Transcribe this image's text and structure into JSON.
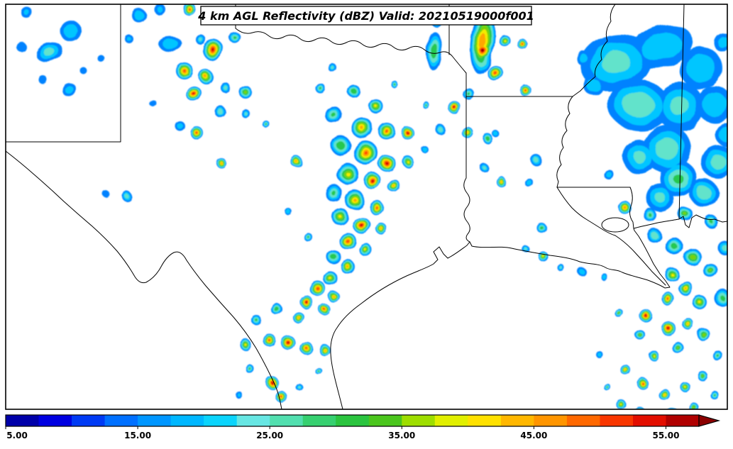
{
  "chart_data": {
    "type": "heatmap",
    "title": "4 km AGL Reflectivity (dBZ) Valid: 20210519000f001",
    "units": "dBZ",
    "layout": {
      "background": "#ffffff",
      "frame_color": "#000000",
      "boundary_color": "#000000",
      "legend_position": "bottom"
    },
    "colorbar": {
      "tick_labels": [
        "5.00",
        "15.00",
        "25.00",
        "35.00",
        "45.00",
        "55.00"
      ],
      "tick_values": [
        5,
        15,
        25,
        35,
        45,
        55
      ],
      "range": [
        5,
        57.5
      ],
      "arrow_color": "#8B0000",
      "levels": [
        [
          5,
          "#00008B"
        ],
        [
          9,
          "#0000E6"
        ],
        [
          13,
          "#0064FF"
        ],
        [
          17,
          "#00A0FF"
        ],
        [
          21,
          "#00D2FF"
        ],
        [
          24,
          "#6EE7E1"
        ],
        [
          27,
          "#4ADCA0"
        ],
        [
          30,
          "#28C850"
        ],
        [
          33,
          "#30BE28"
        ],
        [
          36,
          "#96DC00"
        ],
        [
          39,
          "#E6F000"
        ],
        [
          41,
          "#FFE600"
        ],
        [
          44,
          "#FFB400"
        ],
        [
          47,
          "#FF8C00"
        ],
        [
          50,
          "#FF5000"
        ],
        [
          53,
          "#F01400"
        ],
        [
          55.5,
          "#C80000"
        ],
        [
          57.5,
          "#8B0000"
        ]
      ]
    },
    "echo_levels": [
      15,
      20,
      25,
      30,
      35,
      40,
      45,
      50,
      55,
      57
    ],
    "echoes": [
      [
        38,
        18,
        8,
        20
      ],
      [
        30,
        66,
        7,
        18
      ],
      [
        100,
        44,
        15,
        24
      ],
      [
        70,
        74,
        16,
        26,
        1.2,
        0.8,
        -20
      ],
      [
        97,
        126,
        10,
        22
      ],
      [
        142,
        82,
        5,
        15
      ],
      [
        60,
        112,
        6,
        18
      ],
      [
        118,
        100,
        5,
        16
      ],
      [
        196,
        22,
        10,
        24
      ],
      [
        224,
        12,
        8,
        20
      ],
      [
        266,
        12,
        9,
        50
      ],
      [
        240,
        62,
        13,
        24,
        1.3,
        0.8,
        0
      ],
      [
        300,
        70,
        15,
        55
      ],
      [
        330,
        52,
        8,
        30
      ],
      [
        282,
        55,
        7,
        25
      ],
      [
        260,
        100,
        12,
        50
      ],
      [
        290,
        108,
        10,
        46
      ],
      [
        273,
        132,
        11,
        55
      ],
      [
        318,
        124,
        7,
        26
      ],
      [
        346,
        130,
        9,
        36
      ],
      [
        310,
        157,
        8,
        28
      ],
      [
        346,
        160,
        6,
        25
      ],
      [
        278,
        188,
        9,
        50
      ],
      [
        254,
        178,
        7,
        22
      ],
      [
        312,
        230,
        7,
        46
      ],
      [
        375,
        175,
        5,
        30
      ],
      [
        215,
        145,
        5,
        18
      ],
      [
        182,
        55,
        6,
        20
      ],
      [
        418,
        228,
        8,
        46
      ],
      [
        180,
        278,
        7,
        26
      ],
      [
        150,
        274,
        5,
        18
      ],
      [
        468,
        95,
        6,
        25
      ],
      [
        452,
        125,
        7,
        30
      ],
      [
        498,
        128,
        9,
        34
      ],
      [
        555,
        118,
        5,
        30
      ],
      [
        530,
        150,
        10,
        40
      ],
      [
        470,
        162,
        12,
        30
      ],
      [
        510,
        180,
        15,
        45
      ],
      [
        545,
        185,
        12,
        50
      ],
      [
        575,
        188,
        9,
        56
      ],
      [
        480,
        205,
        14,
        34
      ],
      [
        515,
        215,
        17,
        50
      ],
      [
        545,
        230,
        12,
        56
      ],
      [
        575,
        228,
        8,
        40
      ],
      [
        490,
        245,
        15,
        40
      ],
      [
        525,
        255,
        12,
        56
      ],
      [
        555,
        262,
        9,
        45
      ],
      [
        470,
        272,
        12,
        30
      ],
      [
        500,
        282,
        14,
        45
      ],
      [
        530,
        292,
        10,
        50
      ],
      [
        480,
        306,
        12,
        40
      ],
      [
        510,
        318,
        12,
        56
      ],
      [
        537,
        322,
        8,
        45
      ],
      [
        490,
        340,
        12,
        52
      ],
      [
        515,
        352,
        9,
        40
      ],
      [
        470,
        362,
        10,
        34
      ],
      [
        490,
        376,
        10,
        45
      ],
      [
        465,
        392,
        10,
        40
      ],
      [
        447,
        406,
        11,
        52
      ],
      [
        470,
        418,
        8,
        45
      ],
      [
        432,
        426,
        9,
        56
      ],
      [
        457,
        436,
        8,
        50
      ],
      [
        420,
        447,
        8,
        45
      ],
      [
        408,
        300,
        5,
        24
      ],
      [
        435,
        335,
        6,
        30
      ],
      [
        600,
        212,
        5,
        24
      ],
      [
        390,
        436,
        8,
        34
      ],
      [
        362,
        452,
        7,
        30
      ],
      [
        346,
        486,
        8,
        40
      ],
      [
        379,
        479,
        9,
        50
      ],
      [
        406,
        483,
        10,
        56
      ],
      [
        432,
        491,
        9,
        50
      ],
      [
        457,
        493,
        8,
        45
      ],
      [
        353,
        521,
        6,
        30
      ],
      [
        383,
        539,
        9,
        56
      ],
      [
        396,
        559,
        8,
        50
      ],
      [
        422,
        546,
        5,
        25
      ],
      [
        450,
        524,
        5,
        30
      ],
      [
        336,
        556,
        5,
        20
      ],
      [
        612,
        72,
        28,
        34,
        0.4,
        1,
        0
      ],
      [
        615,
        30,
        8,
        28
      ],
      [
        648,
        20,
        10,
        30
      ],
      [
        680,
        58,
        46,
        48,
        0.38,
        1,
        6
      ],
      [
        681,
        72,
        14,
        57
      ],
      [
        697,
        102,
        11,
        52
      ],
      [
        702,
        24,
        10,
        45
      ],
      [
        712,
        58,
        8,
        40
      ],
      [
        736,
        62,
        7,
        50
      ],
      [
        660,
        132,
        8,
        30
      ],
      [
        641,
        152,
        9,
        56
      ],
      [
        620,
        182,
        7,
        28
      ],
      [
        658,
        186,
        8,
        45
      ],
      [
        688,
        196,
        7,
        34
      ],
      [
        740,
        127,
        8,
        50
      ],
      [
        706,
        256,
        7,
        45
      ],
      [
        682,
        236,
        6,
        25
      ],
      [
        600,
        148,
        5,
        30
      ],
      [
        700,
        190,
        5,
        24
      ],
      [
        756,
        226,
        8,
        27
      ],
      [
        746,
        258,
        6,
        24
      ],
      [
        763,
        321,
        7,
        32
      ],
      [
        741,
        351,
        5,
        25
      ],
      [
        766,
        362,
        7,
        40
      ],
      [
        789,
        376,
        5,
        25
      ],
      [
        820,
        383,
        6,
        22
      ],
      [
        852,
        391,
        5,
        24
      ],
      [
        868,
        88,
        44,
        26,
        1.15,
        0.9,
        -12
      ],
      [
        932,
        66,
        38,
        23,
        1.2,
        0.75,
        -18
      ],
      [
        988,
        96,
        30,
        24
      ],
      [
        900,
        148,
        40,
        29,
        1.1,
        0.9,
        8
      ],
      [
        958,
        150,
        34,
        26
      ],
      [
        1008,
        148,
        26,
        24
      ],
      [
        940,
        210,
        34,
        28
      ],
      [
        902,
        222,
        24,
        25
      ],
      [
        1012,
        228,
        24,
        27
      ],
      [
        956,
        252,
        26,
        30
      ],
      [
        930,
        278,
        20,
        25
      ],
      [
        992,
        272,
        20,
        28
      ],
      [
        880,
        292,
        9,
        48
      ],
      [
        915,
        302,
        9,
        30
      ],
      [
        966,
        302,
        10,
        35
      ],
      [
        1002,
        312,
        9,
        30
      ],
      [
        858,
        246,
        7,
        22
      ],
      [
        836,
        120,
        14,
        24
      ],
      [
        822,
        82,
        10,
        22
      ],
      [
        1024,
        190,
        16,
        24
      ],
      [
        1020,
        60,
        14,
        22
      ],
      [
        922,
        332,
        10,
        28
      ],
      [
        950,
        347,
        12,
        32
      ],
      [
        976,
        362,
        12,
        38
      ],
      [
        1002,
        382,
        10,
        35
      ],
      [
        946,
        386,
        10,
        40
      ],
      [
        966,
        406,
        10,
        45
      ],
      [
        986,
        426,
        10,
        40
      ],
      [
        941,
        421,
        9,
        50
      ],
      [
        911,
        446,
        9,
        56
      ],
      [
        942,
        463,
        10,
        56
      ],
      [
        969,
        456,
        8,
        45
      ],
      [
        901,
        471,
        7,
        35
      ],
      [
        873,
        442,
        6,
        35
      ],
      [
        991,
        471,
        9,
        38
      ],
      [
        956,
        491,
        8,
        35
      ],
      [
        921,
        501,
        7,
        40
      ],
      [
        881,
        521,
        7,
        45
      ],
      [
        906,
        541,
        8,
        50
      ],
      [
        936,
        556,
        8,
        45
      ],
      [
        966,
        546,
        7,
        40
      ],
      [
        991,
        531,
        7,
        35
      ],
      [
        1011,
        501,
        7,
        30
      ],
      [
        876,
        571,
        7,
        40
      ],
      [
        901,
        581,
        8,
        48
      ],
      [
        948,
        582,
        8,
        45
      ],
      [
        979,
        576,
        7,
        38
      ],
      [
        1006,
        556,
        6,
        30
      ],
      [
        856,
        546,
        5,
        30
      ],
      [
        846,
        501,
        5,
        22
      ],
      [
        1018,
        420,
        12,
        30
      ],
      [
        1022,
        350,
        10,
        26
      ]
    ]
  }
}
